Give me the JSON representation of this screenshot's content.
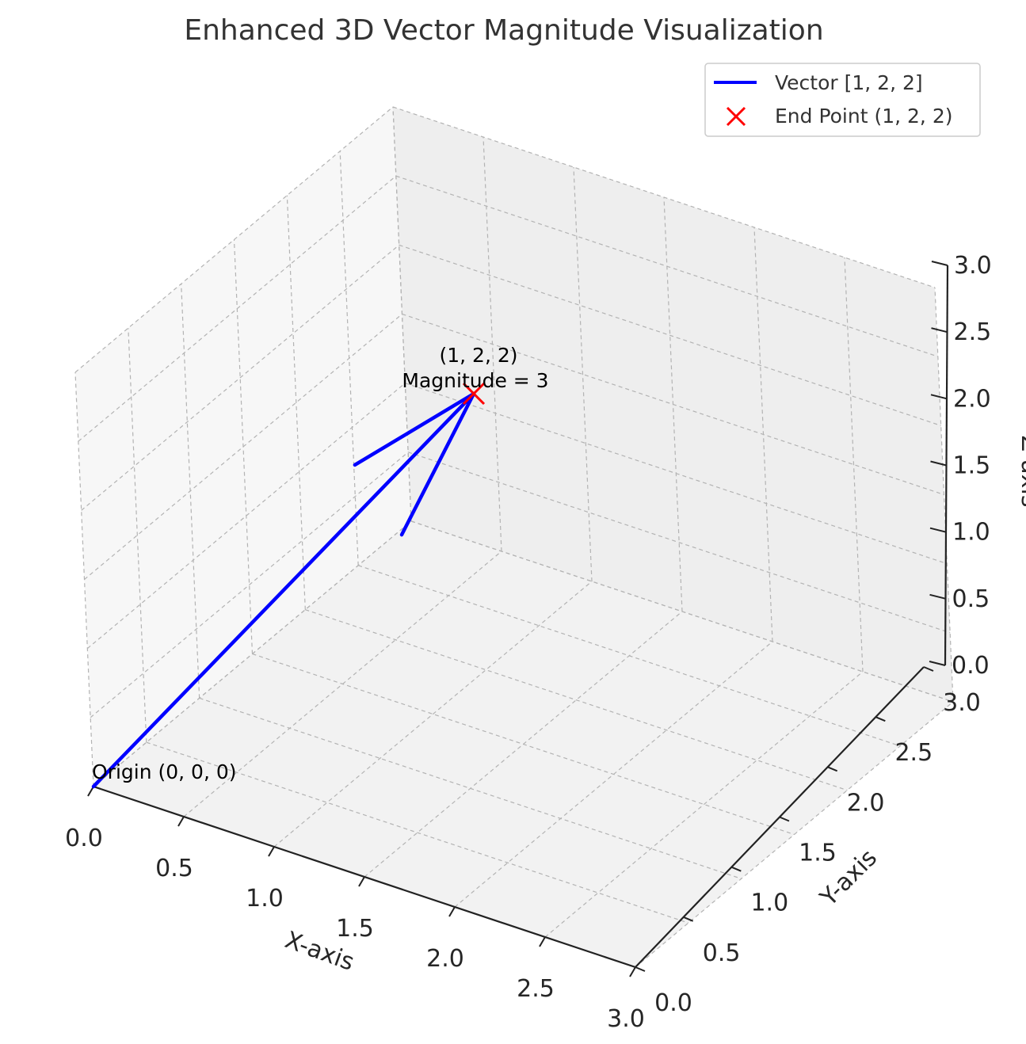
{
  "chart_data": {
    "type": "line",
    "projection": "3d",
    "title": "Enhanced 3D Vector Magnitude Visualization",
    "xlabel": "X-axis",
    "ylabel": "Y-axis",
    "zlabel": "Z-axis",
    "xlim": [
      0,
      3
    ],
    "ylim": [
      0,
      3
    ],
    "zlim": [
      0,
      3
    ],
    "x_ticks": [
      "0.0",
      "0.5",
      "1.0",
      "1.5",
      "2.0",
      "2.5",
      "3.0"
    ],
    "y_ticks": [
      "0.0",
      "0.5",
      "1.0",
      "1.5",
      "2.0",
      "2.5",
      "3.0"
    ],
    "z_ticks": [
      "0.0",
      "0.5",
      "1.0",
      "1.5",
      "2.0",
      "2.5",
      "3.0"
    ],
    "grid": true,
    "legend_position": "top-right",
    "series": [
      {
        "name": "Vector [1, 2, 2]",
        "kind": "arrow",
        "start": [
          0,
          0,
          0
        ],
        "end": [
          1,
          2,
          2
        ],
        "color": "#0000ff"
      },
      {
        "name": "End Point (1, 2, 2)",
        "kind": "marker",
        "marker": "x",
        "point": [
          1,
          2,
          2
        ],
        "color": "#ff0000"
      }
    ],
    "annotations": [
      {
        "text": "Origin (0, 0, 0)",
        "at": [
          0,
          0,
          0
        ]
      },
      {
        "text_line1": "(1, 2, 2)",
        "text_line2": "Magnitude = 3",
        "at": [
          1,
          2,
          2
        ]
      }
    ]
  }
}
